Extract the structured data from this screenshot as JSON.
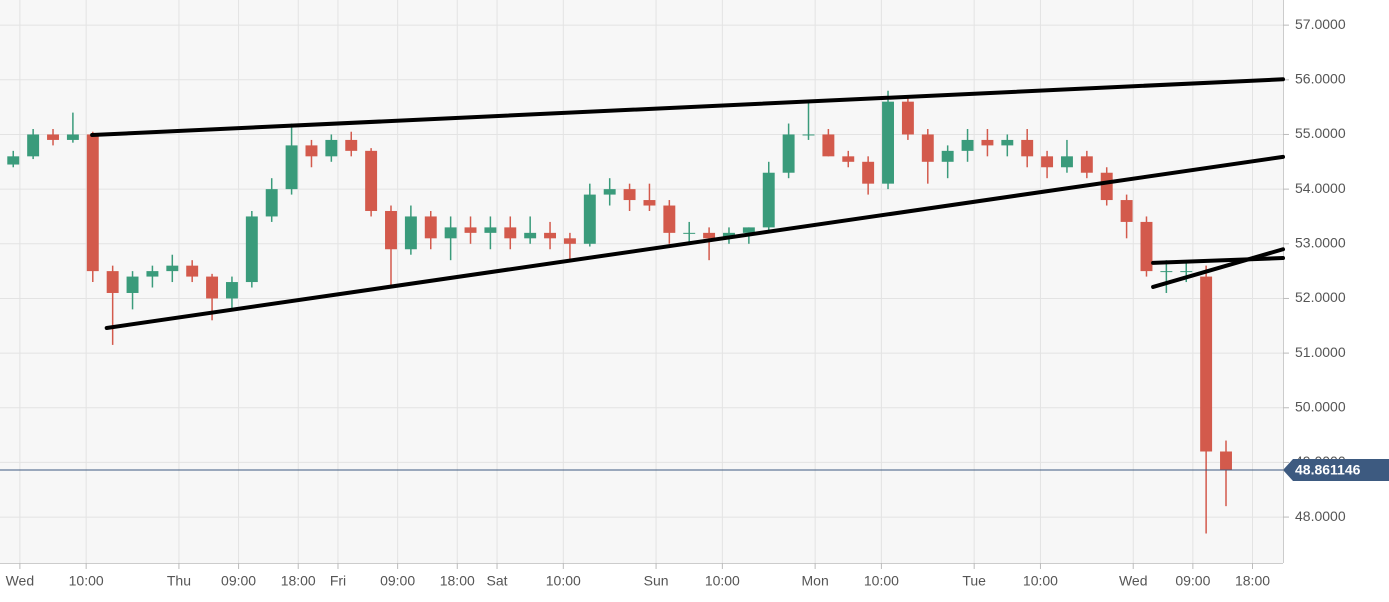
{
  "chart_data": {
    "type": "candlestick",
    "x": [
      -1,
      2,
      5,
      8,
      11,
      14,
      17,
      20,
      23,
      26,
      29,
      32,
      35,
      38,
      41,
      44,
      47,
      50,
      53,
      56,
      59,
      62,
      65,
      68,
      71,
      74,
      77,
      80,
      83,
      86,
      89,
      92,
      95,
      98,
      101,
      104,
      107,
      110,
      113,
      116,
      119,
      122,
      125,
      128,
      131,
      134,
      137,
      140,
      143,
      146,
      149,
      152,
      155,
      158,
      161,
      164,
      167,
      170,
      173,
      176,
      179,
      182
    ],
    "open": [
      54.45,
      54.6,
      55.0,
      54.9,
      55.0,
      52.5,
      52.1,
      52.4,
      52.5,
      52.6,
      52.4,
      52.0,
      52.3,
      53.5,
      54.0,
      54.8,
      54.6,
      54.9,
      54.7,
      53.6,
      52.9,
      53.5,
      53.1,
      53.3,
      53.2,
      53.3,
      53.1,
      53.2,
      53.1,
      53.0,
      53.9,
      54.0,
      53.8,
      53.7,
      53.2,
      53.2,
      53.1,
      53.2,
      53.3,
      54.3,
      55.0,
      55.0,
      54.6,
      54.5,
      54.1,
      55.6,
      55.0,
      54.5,
      54.7,
      54.9,
      54.8,
      54.9,
      54.6,
      54.4,
      54.6,
      54.3,
      53.8,
      53.4,
      52.5,
      52.5,
      52.4,
      49.2
    ],
    "high": [
      54.7,
      55.1,
      55.1,
      55.4,
      55.05,
      52.6,
      52.5,
      52.6,
      52.8,
      52.7,
      52.45,
      52.4,
      53.6,
      54.2,
      55.2,
      54.9,
      55.0,
      55.05,
      54.75,
      53.7,
      53.7,
      53.6,
      53.5,
      53.5,
      53.5,
      53.5,
      53.5,
      53.4,
      53.2,
      54.1,
      54.2,
      54.1,
      54.1,
      53.8,
      53.4,
      53.3,
      53.3,
      53.3,
      54.5,
      55.2,
      55.6,
      55.1,
      54.7,
      54.6,
      55.8,
      55.7,
      55.1,
      54.8,
      55.1,
      55.1,
      55.0,
      55.1,
      54.7,
      54.9,
      54.7,
      54.4,
      53.9,
      53.5,
      52.7,
      52.7,
      52.6,
      49.4
    ],
    "low": [
      54.4,
      54.55,
      54.8,
      54.85,
      52.3,
      51.15,
      51.8,
      52.2,
      52.3,
      52.3,
      51.6,
      51.8,
      52.2,
      53.4,
      53.9,
      54.4,
      54.5,
      54.6,
      53.5,
      52.2,
      52.8,
      52.9,
      52.7,
      53.0,
      52.9,
      52.9,
      53.0,
      52.9,
      52.7,
      52.95,
      53.7,
      53.6,
      53.6,
      53.0,
      53.0,
      52.7,
      53.0,
      53.0,
      53.25,
      54.2,
      54.9,
      54.6,
      54.4,
      53.9,
      54.0,
      54.9,
      54.1,
      54.2,
      54.5,
      54.6,
      54.6,
      54.4,
      54.2,
      54.3,
      54.2,
      53.7,
      53.1,
      52.4,
      52.1,
      52.3,
      47.7,
      48.2
    ],
    "close": [
      54.6,
      55.0,
      54.9,
      55.0,
      52.5,
      52.1,
      52.4,
      52.5,
      52.6,
      52.4,
      52.0,
      52.3,
      53.5,
      54.0,
      54.8,
      54.6,
      54.9,
      54.7,
      53.6,
      52.9,
      53.5,
      53.1,
      53.3,
      53.2,
      53.3,
      53.1,
      53.2,
      53.1,
      53.0,
      53.9,
      54.0,
      53.8,
      53.7,
      53.2,
      53.2,
      53.1,
      53.2,
      53.3,
      54.3,
      55.0,
      55.0,
      54.6,
      54.5,
      54.1,
      55.6,
      55.0,
      54.5,
      54.7,
      54.9,
      54.8,
      54.9,
      54.6,
      54.4,
      54.6,
      54.3,
      53.8,
      53.4,
      52.5,
      52.5,
      52.5,
      49.2,
      48.86
    ],
    "up_color": "#3a9b7b",
    "down_color": "#d35a4c",
    "xlim": [
      -3.0,
      190.6
    ],
    "ylim": [
      47.16,
      57.46
    ],
    "xticks": [
      {
        "value": 0,
        "label": "Wed"
      },
      {
        "value": 10,
        "label": "10:00"
      },
      {
        "value": 24,
        "label": "Thu"
      },
      {
        "value": 33,
        "label": "09:00"
      },
      {
        "value": 42,
        "label": "18:00"
      },
      {
        "value": 48,
        "label": "Fri"
      },
      {
        "value": 57,
        "label": "09:00"
      },
      {
        "value": 66,
        "label": "18:00"
      },
      {
        "value": 72,
        "label": "Sat"
      },
      {
        "value": 82,
        "label": "10:00"
      },
      {
        "value": 96,
        "label": "Sun"
      },
      {
        "value": 106,
        "label": "10:00"
      },
      {
        "value": 120,
        "label": "Mon"
      },
      {
        "value": 130,
        "label": "10:00"
      },
      {
        "value": 144,
        "label": "Tue"
      },
      {
        "value": 154,
        "label": "10:00"
      },
      {
        "value": 168,
        "label": "Wed"
      },
      {
        "value": 177,
        "label": "09:00"
      },
      {
        "value": 186,
        "label": "18:00"
      }
    ],
    "yticks": [
      {
        "value": 48,
        "label": "48.0000"
      },
      {
        "value": 49,
        "label": "49.0000"
      },
      {
        "value": 50,
        "label": "50.0000"
      },
      {
        "value": 51,
        "label": "51.0000"
      },
      {
        "value": 52,
        "label": "52.0000"
      },
      {
        "value": 53,
        "label": "53.0000"
      },
      {
        "value": 54,
        "label": "54.0000"
      },
      {
        "value": 55,
        "label": "55.0000"
      },
      {
        "value": 56,
        "label": "56.0000"
      },
      {
        "value": 57,
        "label": "57.0000"
      }
    ],
    "grid": true,
    "last_price": 48.861146,
    "last_price_color": "#3d5a80",
    "trendlines": [
      {
        "x": [
          10.9,
          190.6
        ],
        "y": [
          54.99,
          56.01
        ]
      },
      {
        "x": [
          13.1,
          190.6
        ],
        "y": [
          51.46,
          54.59
        ]
      },
      {
        "x": [
          171,
          190.6
        ],
        "y": [
          52.65,
          52.74
        ]
      },
      {
        "x": [
          171,
          190.6
        ],
        "y": [
          52.21,
          52.9
        ]
      }
    ],
    "trendline_color": "#000000"
  }
}
